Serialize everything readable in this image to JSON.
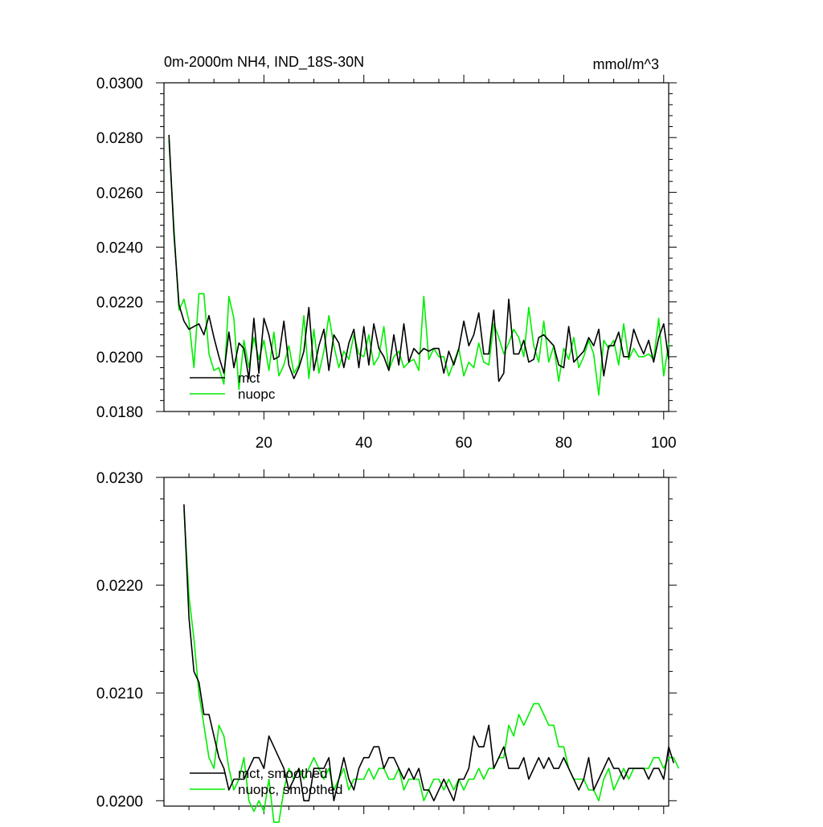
{
  "chart_data": [
    {
      "type": "line",
      "title": "0m-2000m NH4, IND_18S-30N",
      "units": "mmol/m^3",
      "xlim": [
        0,
        101
      ],
      "ylim": [
        0.018,
        0.03
      ],
      "xticks": [
        20,
        40,
        60,
        80,
        100
      ],
      "yticks": [
        0.018,
        0.02,
        0.022,
        0.024,
        0.026,
        0.028,
        0.03
      ],
      "ytick_labels": [
        "0.0180",
        "0.0200",
        "0.0220",
        "0.0240",
        "0.0260",
        "0.0280",
        "0.0300"
      ],
      "legend_position": "bottom-left",
      "grid": false,
      "series": [
        {
          "name": "mct",
          "color": "#000000",
          "x_start": 1,
          "values": [
            0.0281,
            0.0245,
            0.0219,
            0.0213,
            0.021,
            0.0211,
            0.0212,
            0.0208,
            0.0215,
            0.0207,
            0.02,
            0.0194,
            0.0209,
            0.0196,
            0.0205,
            0.0203,
            0.0192,
            0.0214,
            0.0194,
            0.0214,
            0.0208,
            0.0199,
            0.02,
            0.0213,
            0.0197,
            0.0192,
            0.0196,
            0.0202,
            0.0218,
            0.0195,
            0.0204,
            0.021,
            0.0195,
            0.0208,
            0.0205,
            0.0196,
            0.0205,
            0.021,
            0.0196,
            0.0211,
            0.0197,
            0.0212,
            0.0203,
            0.02,
            0.0195,
            0.0208,
            0.0197,
            0.0212,
            0.0198,
            0.0203,
            0.0201,
            0.0203,
            0.0202,
            0.0203,
            0.0203,
            0.0194,
            0.0202,
            0.0197,
            0.0203,
            0.0213,
            0.0204,
            0.0208,
            0.0216,
            0.0201,
            0.0201,
            0.0217,
            0.0191,
            0.0194,
            0.0221,
            0.0201,
            0.0201,
            0.0206,
            0.0198,
            0.0199,
            0.0207,
            0.0208,
            0.0206,
            0.0204,
            0.0197,
            0.0196,
            0.0211,
            0.0198,
            0.02,
            0.0202,
            0.0207,
            0.0204,
            0.021,
            0.0193,
            0.0204,
            0.0204,
            0.0209,
            0.02,
            0.02,
            0.021,
            0.0205,
            0.0201,
            0.0206,
            0.0198,
            0.0207,
            0.0212,
            0.0199
          ]
        },
        {
          "name": "nuopc",
          "color": "#00ee00",
          "x_start": 1,
          "values": [
            0.0279,
            0.0247,
            0.0217,
            0.0221,
            0.0213,
            0.0196,
            0.0223,
            0.0223,
            0.0201,
            0.0195,
            0.0196,
            0.019,
            0.0222,
            0.0214,
            0.0188,
            0.0206,
            0.0196,
            0.0207,
            0.0199,
            0.0206,
            0.0195,
            0.0209,
            0.0193,
            0.0197,
            0.0204,
            0.0194,
            0.0197,
            0.0215,
            0.0192,
            0.021,
            0.0194,
            0.0202,
            0.0215,
            0.0204,
            0.0196,
            0.0202,
            0.0199,
            0.0208,
            0.0201,
            0.02,
            0.0208,
            0.0197,
            0.02,
            0.0211,
            0.0195,
            0.02,
            0.0202,
            0.0196,
            0.0198,
            0.0199,
            0.0195,
            0.0222,
            0.0199,
            0.0203,
            0.02,
            0.02,
            0.0193,
            0.0198,
            0.0203,
            0.0193,
            0.0198,
            0.0196,
            0.0205,
            0.0198,
            0.0197,
            0.0212,
            0.0207,
            0.0201,
            0.0205,
            0.021,
            0.0207,
            0.02,
            0.0218,
            0.0204,
            0.0198,
            0.0213,
            0.0198,
            0.0204,
            0.0191,
            0.0203,
            0.0199,
            0.0207,
            0.0196,
            0.02,
            0.0206,
            0.0201,
            0.0186,
            0.0206,
            0.0203,
            0.0206,
            0.0197,
            0.0212,
            0.0199,
            0.0203,
            0.02,
            0.02,
            0.0201,
            0.0199,
            0.0214,
            0.0193,
            0.0205
          ]
        }
      ]
    },
    {
      "type": "line",
      "title": "",
      "xlim": [
        0,
        101
      ],
      "ylim": [
        0.01995,
        0.023
      ],
      "xticks": [
        20,
        40,
        60,
        80,
        100
      ],
      "show_xtick_labels": false,
      "yticks": [
        0.02,
        0.021,
        0.022,
        0.023
      ],
      "ytick_labels": [
        "0.0200",
        "0.0210",
        "0.0220",
        "0.0230"
      ],
      "legend_position": "bottom-left",
      "grid": false,
      "series": [
        {
          "name": "mct, smoothed",
          "color": "#000000",
          "x_start": 4,
          "values": [
            0.02275,
            0.0217,
            0.0212,
            0.0211,
            0.0208,
            0.0208,
            0.0206,
            0.0204,
            0.0203,
            0.0201,
            0.0202,
            0.0202,
            0.0202,
            0.0203,
            0.0204,
            0.0204,
            0.0203,
            0.0206,
            0.0205,
            0.0204,
            0.0203,
            0.0201,
            0.0202,
            0.0203,
            0.02,
            0.02,
            0.0203,
            0.0203,
            0.0203,
            0.0204,
            0.02,
            0.0202,
            0.0204,
            0.0202,
            0.0201,
            0.0203,
            0.0204,
            0.0204,
            0.0205,
            0.0205,
            0.0203,
            0.0204,
            0.0204,
            0.0203,
            0.0202,
            0.0203,
            0.0202,
            0.0203,
            0.0201,
            0.0201,
            0.02,
            0.0201,
            0.0202,
            0.0201,
            0.02,
            0.0202,
            0.0202,
            0.0203,
            0.0206,
            0.0205,
            0.0205,
            0.0207,
            0.0203,
            0.0204,
            0.0205,
            0.0203,
            0.0203,
            0.0203,
            0.0204,
            0.0202,
            0.0203,
            0.0204,
            0.0203,
            0.0204,
            0.0203,
            0.0203,
            0.0204,
            0.0203,
            0.0202,
            0.0201,
            0.0202,
            0.0204,
            0.0201,
            0.0202,
            0.0203,
            0.0204,
            0.0203,
            0.0203,
            0.0202,
            0.0203,
            0.0203,
            0.0203,
            0.0203,
            0.0202,
            0.0203,
            0.0203,
            0.0202,
            0.0205,
            0.02035
          ]
        },
        {
          "name": "nuopc, smoothed",
          "color": "#00ee00",
          "x_start": 4,
          "values": [
            0.0227,
            0.0219,
            0.0215,
            0.021,
            0.0207,
            0.0204,
            0.0203,
            0.0207,
            0.0206,
            0.0203,
            0.0201,
            0.0202,
            0.0204,
            0.02,
            0.0199,
            0.02,
            0.0199,
            0.0202,
            0.0198,
            0.0198,
            0.0201,
            0.0203,
            0.0202,
            0.0203,
            0.0202,
            0.0203,
            0.0204,
            0.0203,
            0.0202,
            0.0203,
            0.0201,
            0.0202,
            0.0203,
            0.0201,
            0.0202,
            0.0202,
            0.0202,
            0.0203,
            0.0202,
            0.0203,
            0.0203,
            0.0202,
            0.0202,
            0.0203,
            0.0201,
            0.0202,
            0.0202,
            0.0202,
            0.02,
            0.0201,
            0.0202,
            0.0202,
            0.0201,
            0.0202,
            0.0201,
            0.0202,
            0.0201,
            0.0202,
            0.0202,
            0.0203,
            0.0202,
            0.0203,
            0.0203,
            0.0204,
            0.0204,
            0.0207,
            0.0206,
            0.0208,
            0.0207,
            0.0208,
            0.0209,
            0.0209,
            0.0208,
            0.0207,
            0.0207,
            0.0205,
            0.0205,
            0.0203,
            0.0202,
            0.0202,
            0.0202,
            0.0201,
            0.0201,
            0.02,
            0.0202,
            0.0203,
            0.0201,
            0.0202,
            0.0203,
            0.0202,
            0.0203,
            0.0203,
            0.0203,
            0.0203,
            0.0204,
            0.0204,
            0.0203,
            0.0204,
            0.0204,
            0.0203
          ]
        }
      ]
    }
  ]
}
